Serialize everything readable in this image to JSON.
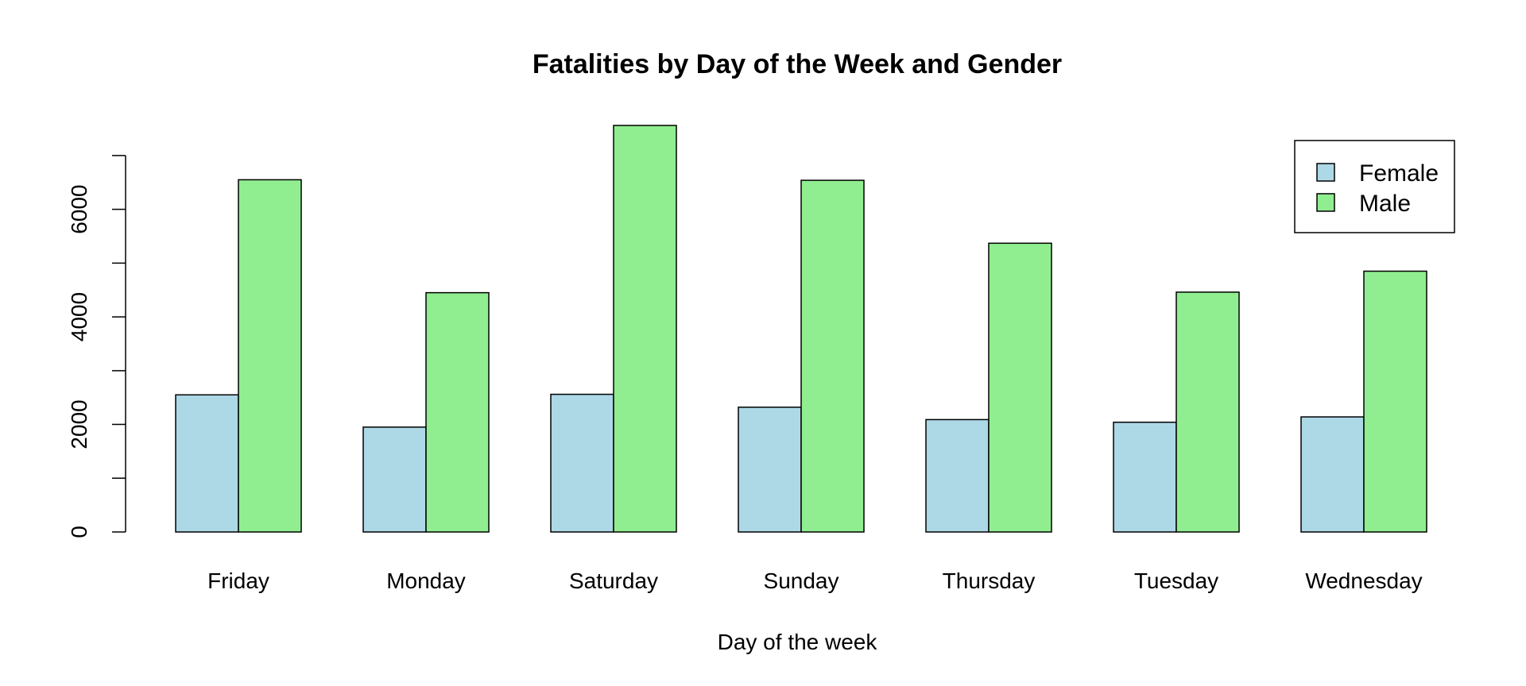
{
  "chart_data": {
    "type": "bar",
    "title": "Fatalities by Day of the Week and Gender",
    "xlabel": "Day of the week",
    "ylabel": "",
    "categories": [
      "Friday",
      "Monday",
      "Saturday",
      "Sunday",
      "Thursday",
      "Tuesday",
      "Wednesday"
    ],
    "series": [
      {
        "name": "Female",
        "color": "#ADD8E6",
        "values": [
          2550,
          1950,
          2560,
          2320,
          2090,
          2040,
          2140
        ]
      },
      {
        "name": "Male",
        "color": "#90EE90",
        "values": [
          6550,
          4450,
          7560,
          6540,
          5370,
          4460,
          4850
        ]
      }
    ],
    "ylim": [
      0,
      7560
    ],
    "yticks": [
      0,
      1000,
      2000,
      3000,
      4000,
      5000,
      6000,
      7000
    ],
    "ytick_labels": [
      "0",
      "",
      "2000",
      "",
      "4000",
      "",
      "6000",
      ""
    ],
    "legend_position": "top-right",
    "grid": false
  }
}
